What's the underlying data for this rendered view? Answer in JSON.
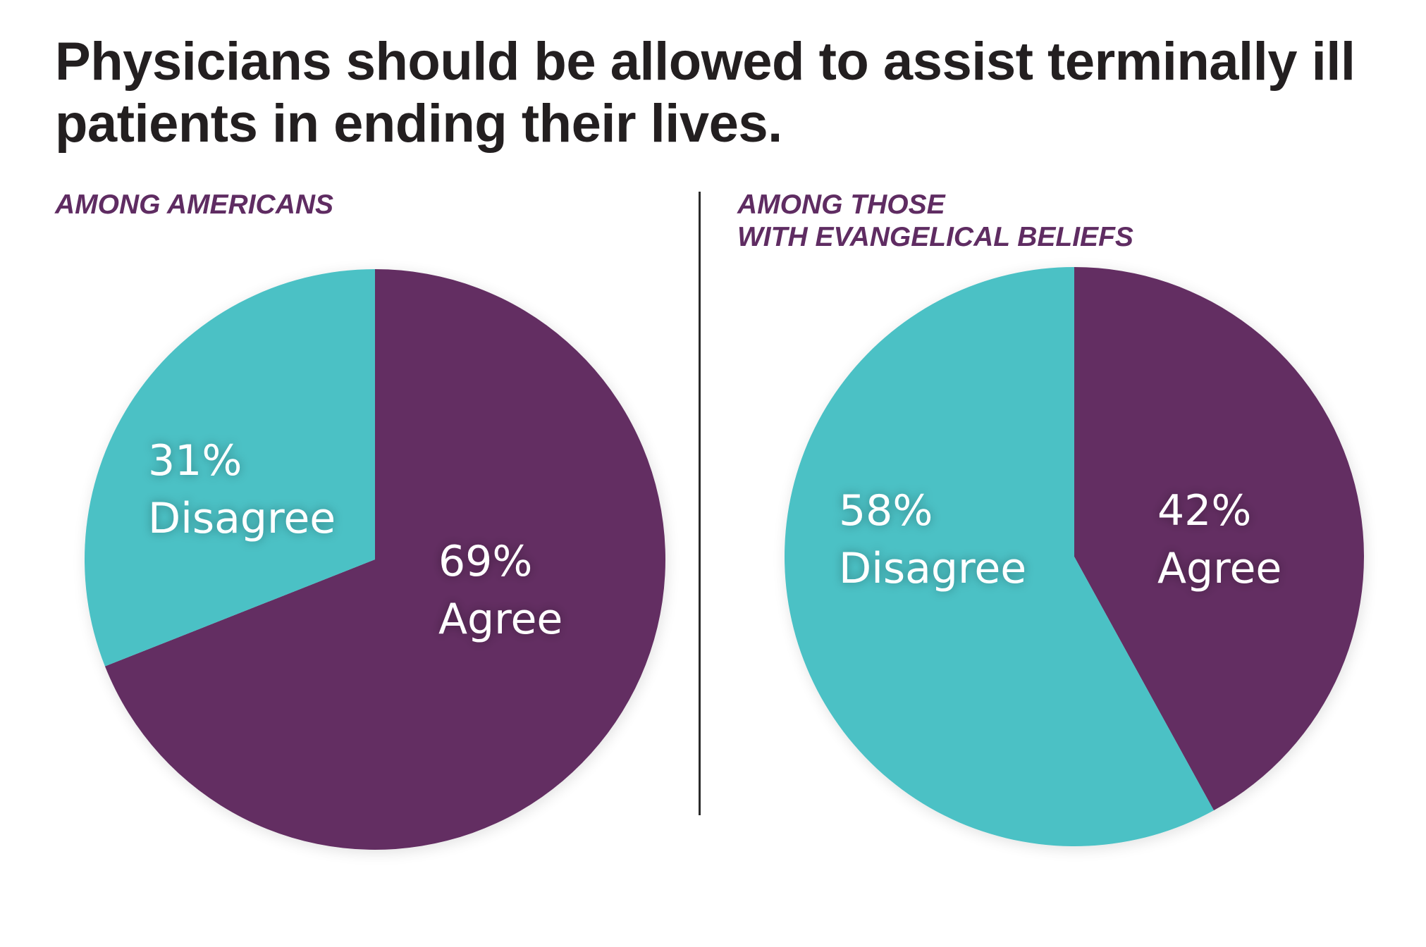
{
  "title": "Physicians should be allowed to assist terminally ill patients in ending their lives.",
  "colors": {
    "agree": "#632e62",
    "disagree": "#4bc1c5",
    "title_text": "#231f20",
    "panel_title": "#5f2c62"
  },
  "chart_data": [
    {
      "type": "pie",
      "title": "AMONG AMERICANS",
      "slices": [
        {
          "label": "Agree",
          "value": 69,
          "value_text": "69%",
          "color": "#632e62"
        },
        {
          "label": "Disagree",
          "value": 31,
          "value_text": "31%",
          "color": "#4bc1c5"
        }
      ]
    },
    {
      "type": "pie",
      "title": "AMONG THOSE WITH EVANGELICAL BELIEFS",
      "title_lines": [
        "AMONG THOSE",
        "WITH EVANGELICAL BELIEFS"
      ],
      "slices": [
        {
          "label": "Agree",
          "value": 42,
          "value_text": "42%",
          "color": "#632e62"
        },
        {
          "label": "Disagree",
          "value": 58,
          "value_text": "58%",
          "color": "#4bc1c5"
        }
      ]
    }
  ]
}
